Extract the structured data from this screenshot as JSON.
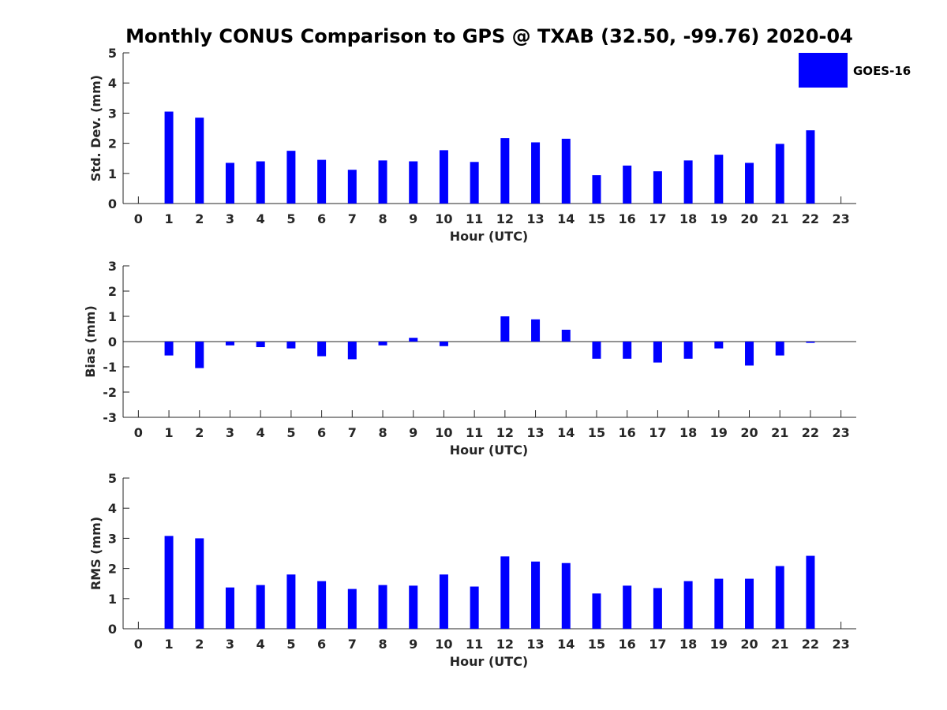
{
  "chart_data": {
    "title": "Monthly CONUS Comparison to GPS @ TXAB (32.50, -99.76) 2020-04",
    "legend": {
      "label": "GOES-16",
      "color": "#0000ff",
      "placement": "top-right"
    },
    "panels": [
      {
        "type": "bar",
        "xlabel": "Hour (UTC)",
        "ylabel": "Std. Dev. (mm)",
        "ylim": [
          0,
          5
        ],
        "yticks": [
          0,
          1,
          2,
          3,
          4,
          5
        ],
        "x": [
          1,
          2,
          3,
          4,
          5,
          6,
          7,
          8,
          9,
          10,
          11,
          12,
          13,
          14,
          15,
          16,
          17,
          18,
          19,
          20,
          21,
          22
        ],
        "values": [
          3.05,
          2.85,
          1.35,
          1.4,
          1.75,
          1.45,
          1.12,
          1.43,
          1.4,
          1.77,
          1.38,
          2.17,
          2.03,
          2.15,
          0.94,
          1.26,
          1.07,
          1.43,
          1.62,
          1.35,
          1.98,
          2.43
        ]
      },
      {
        "type": "bar",
        "xlabel": "Hour (UTC)",
        "ylabel": "Bias (mm)",
        "ylim": [
          -3,
          3
        ],
        "yticks": [
          -3,
          -2,
          -1,
          0,
          1,
          2,
          3
        ],
        "x": [
          1,
          2,
          3,
          4,
          5,
          6,
          7,
          8,
          9,
          10,
          11,
          12,
          13,
          14,
          15,
          16,
          17,
          18,
          19,
          20,
          21,
          22
        ],
        "values": [
          -0.55,
          -1.05,
          -0.15,
          -0.22,
          -0.27,
          -0.58,
          -0.7,
          -0.15,
          0.15,
          -0.18,
          0.0,
          1.0,
          0.88,
          0.47,
          -0.68,
          -0.68,
          -0.83,
          -0.68,
          -0.27,
          -0.95,
          -0.55,
          -0.05
        ]
      },
      {
        "type": "bar",
        "xlabel": "Hour (UTC)",
        "ylabel": "RMS (mm)",
        "ylim": [
          0,
          5
        ],
        "yticks": [
          0,
          1,
          2,
          3,
          4,
          5
        ],
        "x": [
          1,
          2,
          3,
          4,
          5,
          6,
          7,
          8,
          9,
          10,
          11,
          12,
          13,
          14,
          15,
          16,
          17,
          18,
          19,
          20,
          21,
          22
        ],
        "values": [
          3.08,
          3.0,
          1.37,
          1.45,
          1.8,
          1.58,
          1.32,
          1.45,
          1.43,
          1.8,
          1.4,
          2.4,
          2.23,
          2.18,
          1.17,
          1.43,
          1.35,
          1.58,
          1.66,
          1.66,
          2.08,
          2.42
        ]
      }
    ],
    "xticks": [
      0,
      1,
      2,
      3,
      4,
      5,
      6,
      7,
      8,
      9,
      10,
      11,
      12,
      13,
      14,
      15,
      16,
      17,
      18,
      19,
      20,
      21,
      22,
      23
    ],
    "xlim": [
      -0.5,
      23.5
    ]
  }
}
